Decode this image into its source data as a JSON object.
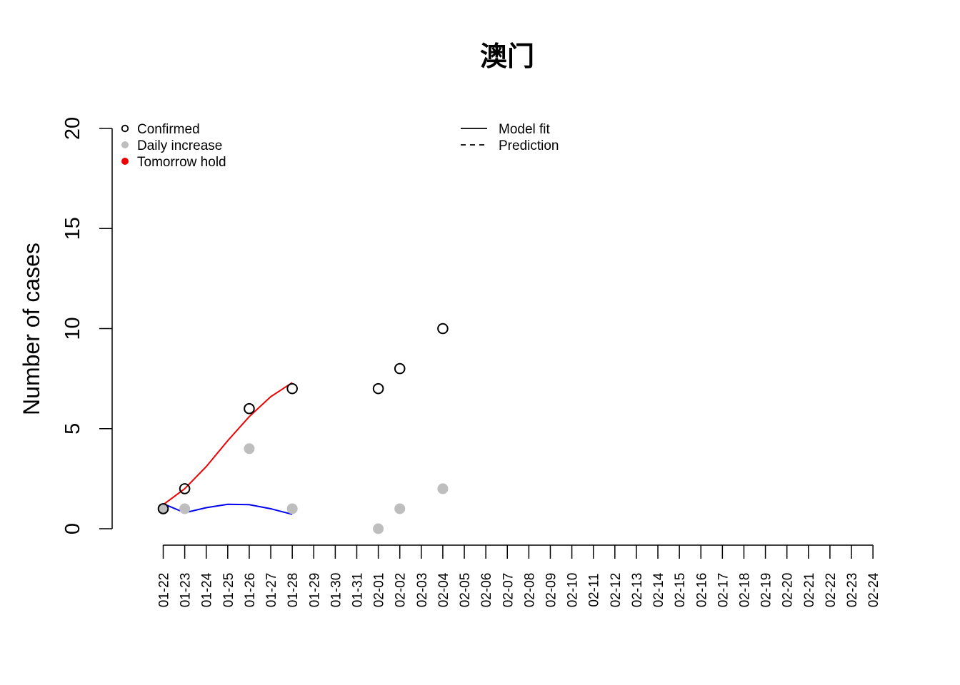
{
  "chart_data": {
    "type": "scatter",
    "title": "澳门",
    "xlabel": "",
    "ylabel": "Number of cases",
    "ylim": [
      0,
      20
    ],
    "yticks": [
      0,
      5,
      10,
      15,
      20
    ],
    "categories": [
      "01-22",
      "01-23",
      "01-24",
      "01-25",
      "01-26",
      "01-27",
      "01-28",
      "01-29",
      "01-30",
      "01-31",
      "02-01",
      "02-02",
      "02-03",
      "02-04",
      "02-05",
      "02-06",
      "02-07",
      "02-08",
      "02-09",
      "02-10",
      "02-11",
      "02-12",
      "02-13",
      "02-14",
      "02-15",
      "02-16",
      "02-17",
      "02-18",
      "02-19",
      "02-20",
      "02-21",
      "02-22",
      "02-23",
      "02-24"
    ],
    "series": [
      {
        "name": "Confirmed",
        "style": "open-circle",
        "color": "#000000",
        "points": [
          {
            "x": "01-22",
            "y": 1
          },
          {
            "x": "01-23",
            "y": 2
          },
          {
            "x": "01-26",
            "y": 6
          },
          {
            "x": "01-28",
            "y": 7
          },
          {
            "x": "02-01",
            "y": 7
          },
          {
            "x": "02-02",
            "y": 8
          },
          {
            "x": "02-04",
            "y": 10
          }
        ]
      },
      {
        "name": "Daily increase",
        "style": "filled-circle",
        "color": "#bebebe",
        "points": [
          {
            "x": "01-22",
            "y": 1
          },
          {
            "x": "01-23",
            "y": 1
          },
          {
            "x": "01-26",
            "y": 4
          },
          {
            "x": "01-28",
            "y": 1
          },
          {
            "x": "02-01",
            "y": 0
          },
          {
            "x": "02-02",
            "y": 1
          },
          {
            "x": "02-04",
            "y": 2
          }
        ]
      },
      {
        "name": "Tomorrow hold",
        "style": "filled-circle",
        "color": "#ee0000",
        "points": []
      },
      {
        "name": "",
        "style": "line",
        "color": "#ee0000",
        "points": [
          {
            "x": "01-22",
            "y": 1.2
          },
          {
            "x": "01-23",
            "y": 2.0
          },
          {
            "x": "01-24",
            "y": 3.1
          },
          {
            "x": "01-25",
            "y": 4.4
          },
          {
            "x": "01-26",
            "y": 5.6
          },
          {
            "x": "01-27",
            "y": 6.6
          },
          {
            "x": "01-28",
            "y": 7.3
          }
        ]
      },
      {
        "name": "",
        "style": "line",
        "color": "#0000ee",
        "points": [
          {
            "x": "01-22",
            "y": 1.25
          },
          {
            "x": "01-23",
            "y": 0.8
          },
          {
            "x": "01-24",
            "y": 1.05
          },
          {
            "x": "01-25",
            "y": 1.22
          },
          {
            "x": "01-26",
            "y": 1.2
          },
          {
            "x": "01-27",
            "y": 1.0
          },
          {
            "x": "01-28",
            "y": 0.72
          }
        ]
      }
    ],
    "legend_points": [
      {
        "label": "Confirmed",
        "style": "open-circle",
        "color": "#000000"
      },
      {
        "label": "Daily increase",
        "style": "filled-circle",
        "color": "#bebebe"
      },
      {
        "label": "Tomorrow hold",
        "style": "filled-circle",
        "color": "#ee0000"
      }
    ],
    "legend_lines": [
      {
        "label": "Model fit",
        "style": "solid"
      },
      {
        "label": "Prediction",
        "style": "dashed"
      }
    ]
  }
}
